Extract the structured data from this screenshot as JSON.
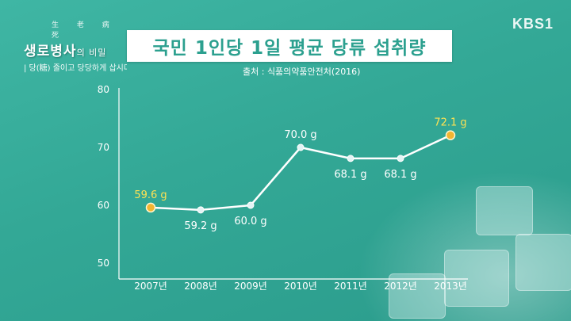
{
  "header": {
    "show_hanja": "生 老 病 死",
    "show_title_main": "생로병사",
    "show_title_suffix": "의 비밀",
    "show_subtitle": "| 당(糖) 줄이고 당당하게 삽시다",
    "broadcaster": "KBS1"
  },
  "colors": {
    "background": "#33a896",
    "title_text": "#2ca08f",
    "line": "#ffffff",
    "highlight_point": "#f2b531",
    "highlight_label": "#ffe253",
    "normal_point": "#e4f4f5"
  },
  "chart_data": {
    "type": "line",
    "title": "국민 1인당 1일 평균 당류 섭취량",
    "subtitle": "출처 : 식품의약품안전처(2016)",
    "xlabel": "",
    "ylabel": "",
    "categories": [
      "2007년",
      "2008년",
      "2009년",
      "2010년",
      "2011년",
      "2012년",
      "2013년"
    ],
    "values": [
      59.6,
      59.2,
      60.0,
      70.0,
      68.1,
      68.1,
      72.1
    ],
    "data_labels": [
      "59.6 g",
      "59.2 g",
      "60.0 g",
      "70.0 g",
      "68.1 g",
      "68.1 g",
      "72.1 g"
    ],
    "highlighted": [
      true,
      false,
      false,
      false,
      false,
      false,
      true
    ],
    "label_position": [
      "above",
      "below",
      "below",
      "above",
      "below",
      "below",
      "above"
    ],
    "ylim": [
      50,
      80
    ],
    "yticks": [
      80,
      70,
      60,
      50
    ],
    "grid": false,
    "legend": "none"
  }
}
